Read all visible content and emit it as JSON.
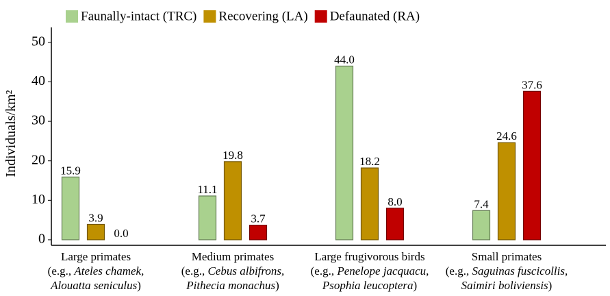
{
  "chart_data": {
    "type": "bar",
    "y_label": "Individuals/km²",
    "categories": [
      [
        [
          "Large primates"
        ],
        [
          "(e.g., ",
          {
            "text": "Ateles chamek,",
            "italic": true
          }
        ],
        [
          {
            "text": "Alouatta seniculus",
            "italic": true
          },
          ")"
        ]
      ],
      [
        [
          "Medium primates"
        ],
        [
          "(e.g., ",
          {
            "text": "Cebus albifrons,",
            "italic": true
          }
        ],
        [
          {
            "text": "Pithecia monachus",
            "italic": true
          },
          ")"
        ]
      ],
      [
        [
          "Large frugivorous birds"
        ],
        [
          "(e.g., ",
          {
            "text": "Penelope jacquacu,",
            "italic": true
          }
        ],
        [
          {
            "text": "Psophia leucoptera",
            "italic": true
          },
          ")"
        ]
      ],
      [
        [
          "Small primates"
        ],
        [
          "(e.g., ",
          {
            "text": "Saguinas fuscicollis,",
            "italic": true
          }
        ],
        [
          {
            "text": "Saimiri boliviensis",
            "italic": true
          },
          ")"
        ]
      ]
    ],
    "series": [
      {
        "name": "Faunally-intact (TRC)",
        "color": "#a9d18e",
        "values": [
          15.9,
          11.1,
          44.0,
          7.4
        ],
        "value_labels": [
          "15.9",
          "11.1",
          "44.0",
          "7.4"
        ]
      },
      {
        "name": "Recovering (LA)",
        "color": "#bf9000",
        "values": [
          3.9,
          19.8,
          18.2,
          24.6
        ],
        "value_labels": [
          "3.9",
          "19.8",
          "18.2",
          "24.6"
        ]
      },
      {
        "name": "Defaunated (RA)",
        "color": "#c00000",
        "values": [
          0.0,
          3.7,
          8.0,
          37.6
        ],
        "value_labels": [
          "0.0",
          "3.7",
          "8.0",
          "37.6"
        ]
      }
    ],
    "ylim": [
      -1.4,
      53.8
    ],
    "yticks": [
      0,
      10,
      20,
      30,
      40,
      50
    ],
    "grid": false,
    "legend": "top"
  }
}
